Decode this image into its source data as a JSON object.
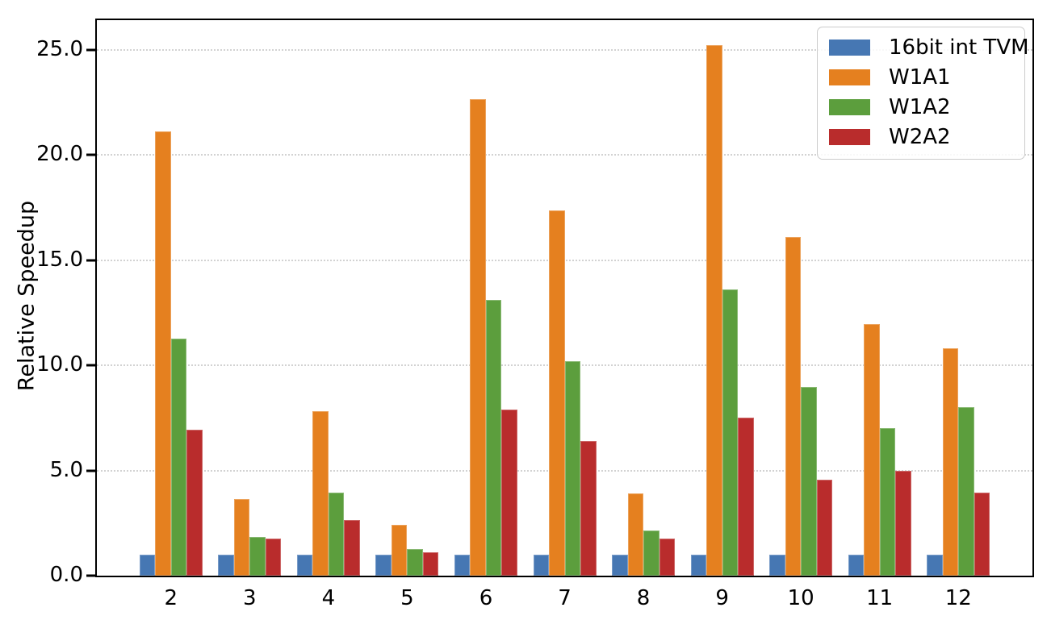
{
  "chart_data": {
    "type": "bar",
    "title": "",
    "xlabel": "",
    "ylabel": "Relative Speedup",
    "categories": [
      "2",
      "3",
      "4",
      "5",
      "6",
      "7",
      "8",
      "9",
      "10",
      "11",
      "12"
    ],
    "series": [
      {
        "name": "16bit int TVM",
        "color": "#4677B3",
        "values": [
          1.0,
          1.0,
          1.0,
          1.0,
          1.0,
          1.0,
          1.0,
          1.0,
          1.0,
          1.0,
          1.0
        ]
      },
      {
        "name": "W1A1",
        "color": "#E5801F",
        "values": [
          21.1,
          3.65,
          7.8,
          2.4,
          22.65,
          17.35,
          3.9,
          25.2,
          16.1,
          11.95,
          10.8
        ]
      },
      {
        "name": "W1A2",
        "color": "#5C9E3D",
        "values": [
          11.25,
          1.85,
          3.95,
          1.25,
          13.1,
          10.2,
          2.15,
          13.6,
          8.95,
          7.0,
          8.0
        ]
      },
      {
        "name": "W2A2",
        "color": "#B92C2C",
        "values": [
          6.95,
          1.75,
          2.65,
          1.1,
          7.9,
          6.4,
          1.75,
          7.5,
          4.55,
          5.0,
          3.95
        ]
      }
    ],
    "ylim": [
      0,
      26.4
    ],
    "yticks": [
      "0.0",
      "5.0",
      "10.0",
      "15.0",
      "20.0",
      "25.0"
    ],
    "ytick_values": [
      0,
      5,
      10,
      15,
      20,
      25
    ],
    "grid": "horizontal dotted",
    "legend_position": "upper right"
  }
}
